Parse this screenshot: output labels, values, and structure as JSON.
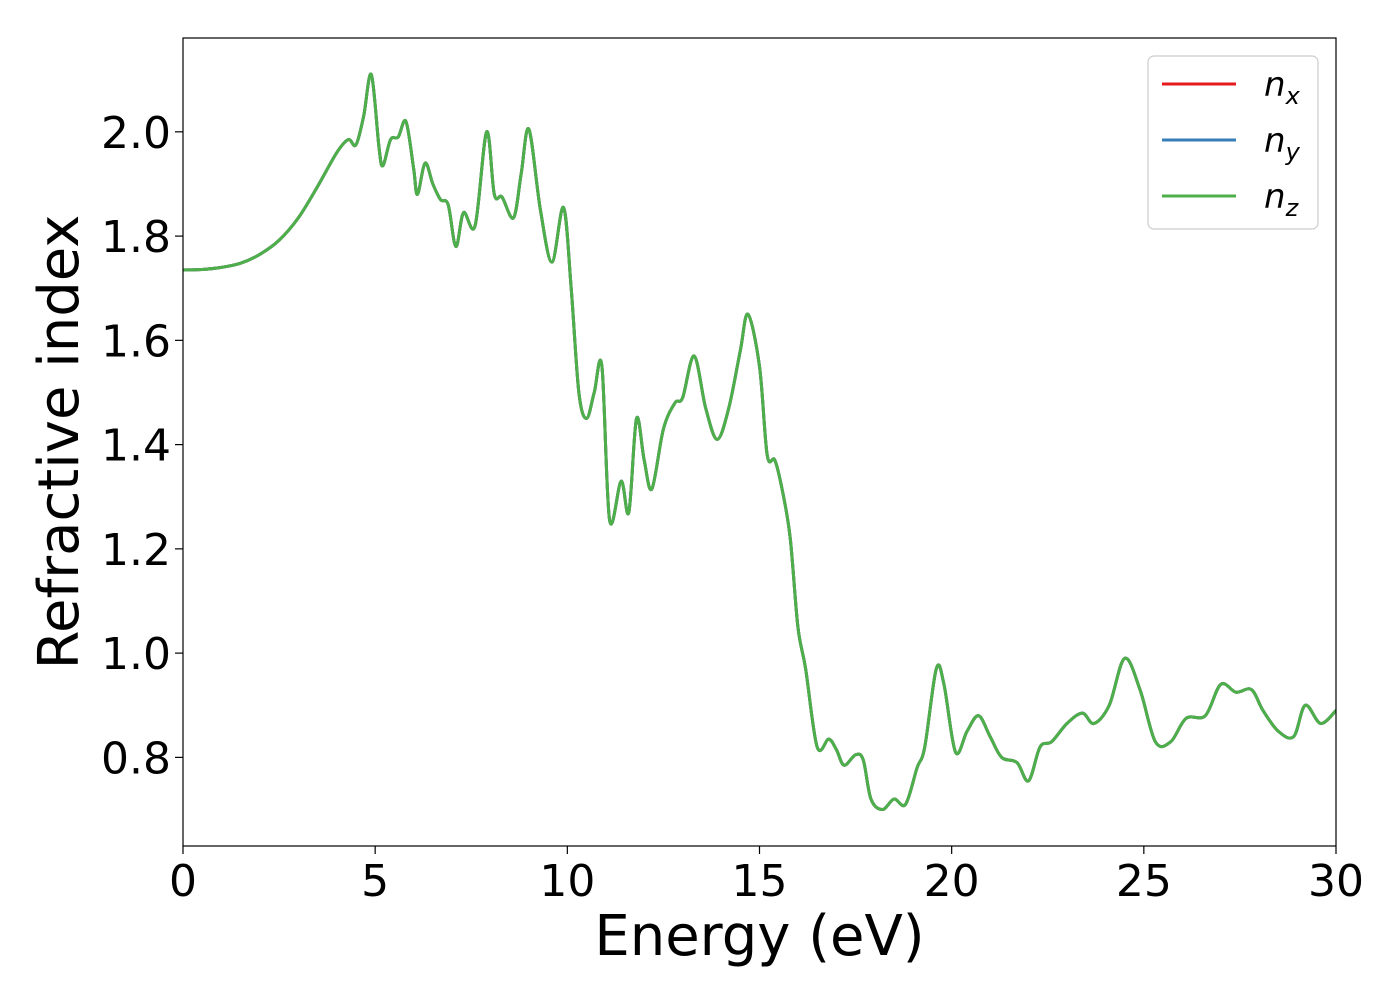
{
  "chart_data": {
    "type": "line",
    "title": "",
    "xlabel": "Energy (eV)",
    "ylabel": "Refractive index",
    "xlim": [
      0,
      30
    ],
    "ylim": [
      0.63,
      2.18
    ],
    "xticks": [
      0,
      5,
      10,
      15,
      20,
      25,
      30
    ],
    "xtick_labels": [
      "0",
      "5",
      "10",
      "15",
      "20",
      "25",
      "30"
    ],
    "yticks": [
      0.8,
      1.0,
      1.2,
      1.4,
      1.6,
      1.8,
      2.0
    ],
    "ytick_labels": [
      "0.8",
      "1.0",
      "1.2",
      "1.4",
      "1.6",
      "1.8",
      "2.0"
    ],
    "grid": false,
    "legend_position": "top-right",
    "legend": [
      {
        "base": "n",
        "sub": "x",
        "color": "#e41a1c"
      },
      {
        "base": "n",
        "sub": "y",
        "color": "#377eb8"
      },
      {
        "base": "n",
        "sub": "z",
        "color": "#4daf4a"
      }
    ],
    "x": [
      0,
      0.5,
      1.0,
      1.5,
      2.0,
      2.5,
      3.0,
      3.5,
      4.0,
      4.3,
      4.5,
      4.7,
      4.9,
      5.1,
      5.2,
      5.4,
      5.6,
      5.8,
      6.0,
      6.1,
      6.3,
      6.5,
      6.7,
      6.9,
      7.1,
      7.3,
      7.6,
      7.9,
      8.1,
      8.3,
      8.6,
      8.8,
      9.0,
      9.3,
      9.6,
      9.9,
      10.1,
      10.3,
      10.5,
      10.7,
      10.9,
      11.1,
      11.4,
      11.6,
      11.8,
      12.0,
      12.2,
      12.5,
      12.8,
      13.0,
      13.3,
      13.6,
      13.9,
      14.2,
      14.5,
      14.7,
      15.0,
      15.2,
      15.4,
      15.6,
      15.8,
      16.0,
      16.2,
      16.5,
      16.8,
      17.0,
      17.2,
      17.5,
      17.7,
      17.9,
      18.2,
      18.5,
      18.8,
      19.1,
      19.3,
      19.6,
      19.8,
      20.1,
      20.4,
      20.7,
      21.0,
      21.3,
      21.7,
      22.0,
      22.3,
      22.6,
      23.0,
      23.4,
      23.7,
      24.1,
      24.5,
      24.9,
      25.3,
      25.7,
      26.1,
      26.6,
      27.0,
      27.4,
      27.8,
      28.1,
      28.5,
      28.9,
      29.2,
      29.6,
      30.0
    ],
    "series": [
      {
        "name": "n_x",
        "color": "#e41a1c",
        "values": [
          1.735,
          1.736,
          1.74,
          1.748,
          1.765,
          1.792,
          1.835,
          1.895,
          1.96,
          1.985,
          1.975,
          2.03,
          2.11,
          1.97,
          1.935,
          1.985,
          1.99,
          2.02,
          1.93,
          1.88,
          1.94,
          1.9,
          1.87,
          1.86,
          1.78,
          1.845,
          1.82,
          2.0,
          1.88,
          1.875,
          1.835,
          1.92,
          2.005,
          1.85,
          1.75,
          1.855,
          1.7,
          1.5,
          1.45,
          1.5,
          1.55,
          1.255,
          1.33,
          1.27,
          1.45,
          1.37,
          1.315,
          1.43,
          1.48,
          1.49,
          1.57,
          1.47,
          1.41,
          1.47,
          1.58,
          1.65,
          1.55,
          1.38,
          1.37,
          1.31,
          1.22,
          1.05,
          0.97,
          0.82,
          0.835,
          0.815,
          0.785,
          0.805,
          0.795,
          0.72,
          0.7,
          0.72,
          0.71,
          0.78,
          0.82,
          0.97,
          0.94,
          0.81,
          0.85,
          0.88,
          0.84,
          0.8,
          0.79,
          0.755,
          0.82,
          0.83,
          0.865,
          0.885,
          0.865,
          0.9,
          0.99,
          0.93,
          0.83,
          0.83,
          0.875,
          0.88,
          0.94,
          0.925,
          0.93,
          0.89,
          0.85,
          0.84,
          0.9,
          0.865,
          0.89
        ]
      },
      {
        "name": "n_y",
        "color": "#377eb8",
        "values": [
          1.735,
          1.736,
          1.74,
          1.748,
          1.765,
          1.792,
          1.835,
          1.895,
          1.96,
          1.985,
          1.975,
          2.03,
          2.11,
          1.97,
          1.935,
          1.985,
          1.99,
          2.02,
          1.93,
          1.88,
          1.94,
          1.9,
          1.87,
          1.86,
          1.78,
          1.845,
          1.82,
          2.0,
          1.88,
          1.875,
          1.835,
          1.92,
          2.005,
          1.85,
          1.75,
          1.855,
          1.7,
          1.5,
          1.45,
          1.5,
          1.55,
          1.255,
          1.33,
          1.27,
          1.45,
          1.37,
          1.315,
          1.43,
          1.48,
          1.49,
          1.57,
          1.47,
          1.41,
          1.47,
          1.58,
          1.65,
          1.55,
          1.38,
          1.37,
          1.31,
          1.22,
          1.05,
          0.97,
          0.82,
          0.835,
          0.815,
          0.785,
          0.805,
          0.795,
          0.72,
          0.7,
          0.72,
          0.71,
          0.78,
          0.82,
          0.97,
          0.94,
          0.81,
          0.85,
          0.88,
          0.84,
          0.8,
          0.79,
          0.755,
          0.82,
          0.83,
          0.865,
          0.885,
          0.865,
          0.9,
          0.99,
          0.93,
          0.83,
          0.83,
          0.875,
          0.88,
          0.94,
          0.925,
          0.93,
          0.89,
          0.85,
          0.84,
          0.9,
          0.865,
          0.89
        ]
      },
      {
        "name": "n_z",
        "color": "#4daf4a",
        "values": [
          1.735,
          1.736,
          1.74,
          1.748,
          1.765,
          1.792,
          1.835,
          1.895,
          1.96,
          1.985,
          1.975,
          2.03,
          2.11,
          1.97,
          1.935,
          1.985,
          1.99,
          2.02,
          1.93,
          1.88,
          1.94,
          1.9,
          1.87,
          1.86,
          1.78,
          1.845,
          1.82,
          2.0,
          1.88,
          1.875,
          1.835,
          1.92,
          2.005,
          1.85,
          1.75,
          1.855,
          1.7,
          1.5,
          1.45,
          1.5,
          1.55,
          1.255,
          1.33,
          1.27,
          1.45,
          1.37,
          1.315,
          1.43,
          1.48,
          1.49,
          1.57,
          1.47,
          1.41,
          1.47,
          1.58,
          1.65,
          1.55,
          1.38,
          1.37,
          1.31,
          1.22,
          1.05,
          0.97,
          0.82,
          0.835,
          0.815,
          0.785,
          0.805,
          0.795,
          0.72,
          0.7,
          0.72,
          0.71,
          0.78,
          0.82,
          0.97,
          0.94,
          0.81,
          0.85,
          0.88,
          0.84,
          0.8,
          0.79,
          0.755,
          0.82,
          0.83,
          0.865,
          0.885,
          0.865,
          0.9,
          0.99,
          0.93,
          0.83,
          0.83,
          0.875,
          0.88,
          0.94,
          0.925,
          0.93,
          0.89,
          0.85,
          0.84,
          0.9,
          0.865,
          0.89
        ]
      }
    ]
  }
}
